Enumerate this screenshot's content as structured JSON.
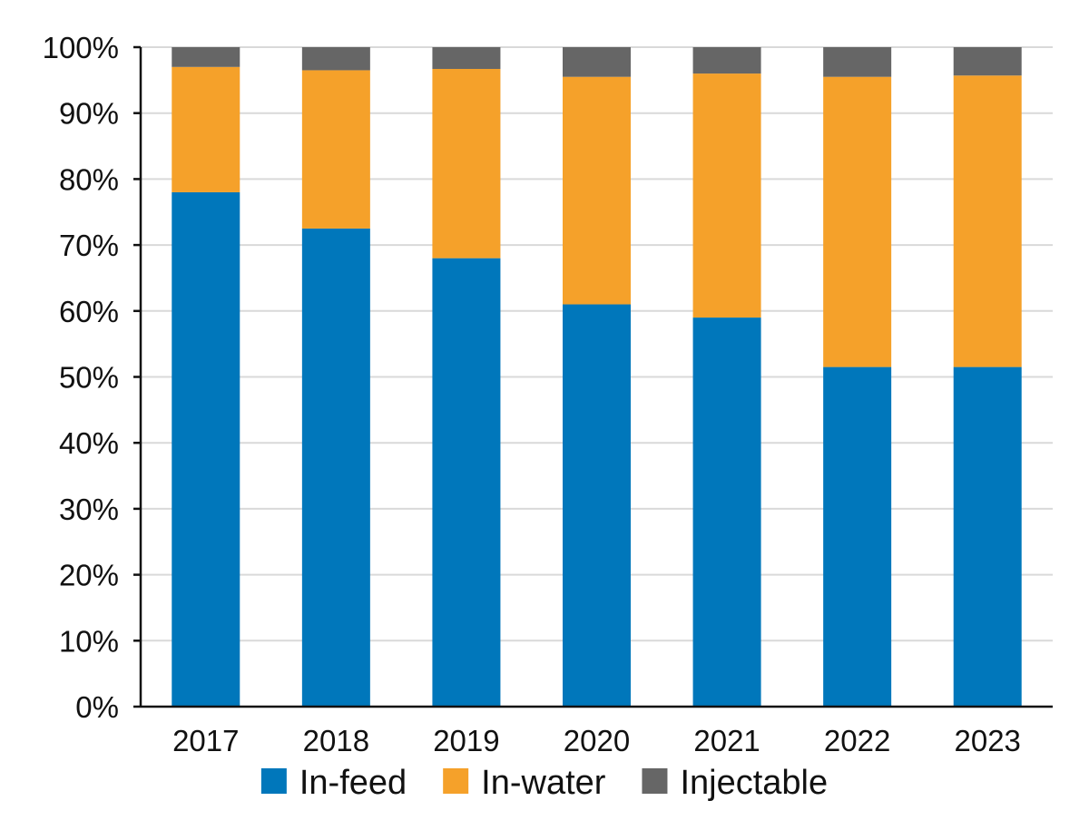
{
  "chart_data": {
    "type": "bar",
    "stacked": true,
    "percent": true,
    "title": "",
    "xlabel": "",
    "ylabel": "",
    "categories": [
      "2017",
      "2018",
      "2019",
      "2020",
      "2021",
      "2022",
      "2023"
    ],
    "series": [
      {
        "name": "In-feed",
        "color": "#0077bb",
        "values": [
          78,
          72.5,
          68,
          61,
          59,
          51.5,
          51.5
        ]
      },
      {
        "name": "In-water",
        "color": "#f5a12a",
        "values": [
          19,
          24,
          28.7,
          34.5,
          37,
          44,
          44.2
        ]
      },
      {
        "name": "Injectable",
        "color": "#666666",
        "values": [
          3,
          3.5,
          3.3,
          4.5,
          4,
          4.5,
          4.3
        ]
      }
    ],
    "ylim": [
      0,
      100
    ],
    "yticks": [
      0,
      10,
      20,
      30,
      40,
      50,
      60,
      70,
      80,
      90,
      100
    ],
    "ytick_labels": [
      "0%",
      "10%",
      "20%",
      "30%",
      "40%",
      "50%",
      "60%",
      "70%",
      "80%",
      "90%",
      "100%"
    ],
    "grid": true,
    "legend_position": "bottom"
  }
}
